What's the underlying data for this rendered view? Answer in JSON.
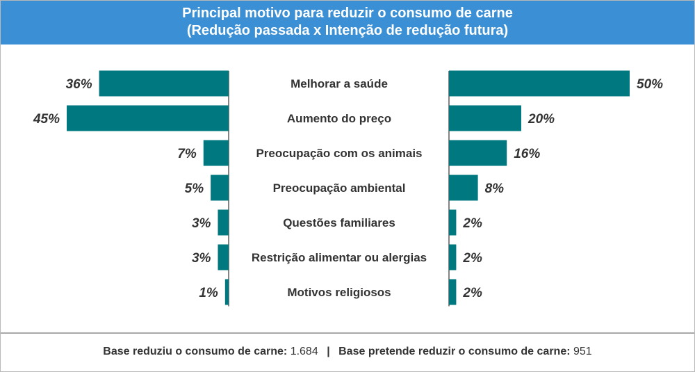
{
  "header": {
    "title": "Principal motivo para reduzir o consumo de carne",
    "subtitle": "(Redução passada x Intenção de redução futura)"
  },
  "colors": {
    "header_bg": "#3b8fd4",
    "bar": "#00787f",
    "text": "#333333"
  },
  "chart_data": {
    "type": "bar",
    "orientation": "horizontal-butterfly",
    "categories": [
      "Melhorar a saúde",
      "Aumento do preço",
      "Preocupação com os animais",
      "Preocupação ambiental",
      "Questões familiares",
      "Restrição alimentar ou alergias",
      "Motivos religiosos"
    ],
    "series": [
      {
        "values": [
          36,
          45,
          7,
          5,
          3,
          3,
          1
        ],
        "labels": [
          "36%",
          "45%",
          "7%",
          "5%",
          "3%",
          "3%",
          "1%"
        ]
      },
      {
        "values": [
          50,
          20,
          16,
          8,
          2,
          2,
          2
        ],
        "labels": [
          "50%",
          "20%",
          "16%",
          "8%",
          "2%",
          "2%",
          "2%"
        ]
      }
    ],
    "unit": "%",
    "xlim": [
      0,
      50
    ],
    "grid": false,
    "legend": "none"
  },
  "footer": {
    "base1_label": "Base reduziu o consumo de carne:",
    "base1_value": "1.684",
    "separator": "|",
    "base2_label": "Base pretende reduzir o consumo de carne:",
    "base2_value": "951"
  }
}
